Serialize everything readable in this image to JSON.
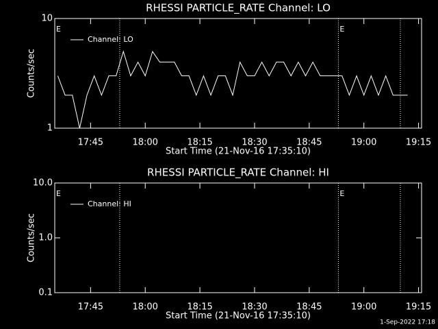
{
  "chart_data": [
    {
      "type": "line",
      "title": "RHESSI PARTICLE_RATE Channel: LO",
      "ylabel": "Counts/sec",
      "xlabel": "Start Time (21-Nov-16 17:35:10)",
      "log_y": true,
      "ylim": [
        1,
        10
      ],
      "yticks": [
        1,
        10
      ],
      "xlim": [
        "17:35:10",
        "19:15:50"
      ],
      "xticks": [
        "17:45",
        "18:00",
        "18:15",
        "18:30",
        "18:45",
        "19:00",
        "19:15"
      ],
      "vlines": [
        "17:53",
        "18:53",
        "19:10"
      ],
      "markers": [
        {
          "x": "17:35:10",
          "label": "E"
        },
        {
          "x": "18:53",
          "label": "E"
        }
      ],
      "x": [
        "17:36",
        "17:38",
        "17:40",
        "17:42",
        "17:44",
        "17:46",
        "17:48",
        "17:50",
        "17:52",
        "17:54",
        "17:56",
        "17:58",
        "18:00",
        "18:02",
        "18:04",
        "18:06",
        "18:08",
        "18:10",
        "18:12",
        "18:14",
        "18:16",
        "18:18",
        "18:20",
        "18:22",
        "18:24",
        "18:26",
        "18:28",
        "18:30",
        "18:32",
        "18:34",
        "18:36",
        "18:38",
        "18:40",
        "18:42",
        "18:44",
        "18:46",
        "18:48",
        "18:50",
        "18:52",
        "18:54",
        "18:56",
        "18:58",
        "19:00",
        "19:02",
        "19:04",
        "19:06",
        "19:08",
        "19:10",
        "19:12"
      ],
      "series": [
        {
          "name": "Channel: LO",
          "color": "#ffffff",
          "values": [
            3,
            2,
            2,
            1,
            2,
            3,
            2,
            3,
            3,
            5,
            3,
            4,
            3,
            5,
            4,
            4,
            4,
            3,
            3,
            2,
            3,
            2,
            3,
            3,
            2,
            4,
            3,
            3,
            4,
            3,
            4,
            4,
            3,
            4,
            3,
            4,
            3,
            3,
            3,
            3,
            2,
            3,
            2,
            3,
            2,
            3,
            2,
            2,
            2
          ]
        }
      ]
    },
    {
      "type": "line",
      "title": "RHESSI PARTICLE_RATE Channel: HI",
      "ylabel": "Counts/sec",
      "xlabel": "Start Time (21-Nov-16 17:35:10)",
      "log_y": true,
      "ylim": [
        0.1,
        10
      ],
      "yticks": [
        0.1,
        {
          "value": 1,
          "label": "1.0"
        },
        {
          "value": 10,
          "label": "10.0"
        }
      ],
      "xlim": [
        "17:35:10",
        "19:15:50"
      ],
      "xticks": [
        "17:45",
        "18:00",
        "18:15",
        "18:30",
        "18:45",
        "19:00",
        "19:15"
      ],
      "vlines": [
        "17:53",
        "18:53",
        "19:10"
      ],
      "markers": [
        {
          "x": "17:35:10",
          "label": "E"
        },
        {
          "x": "18:53",
          "label": "E"
        }
      ],
      "x": [],
      "series": [
        {
          "name": "Channel: HI",
          "color": "#ffffff",
          "values": []
        }
      ]
    }
  ],
  "footer": "1-Sep-2022 17:18"
}
